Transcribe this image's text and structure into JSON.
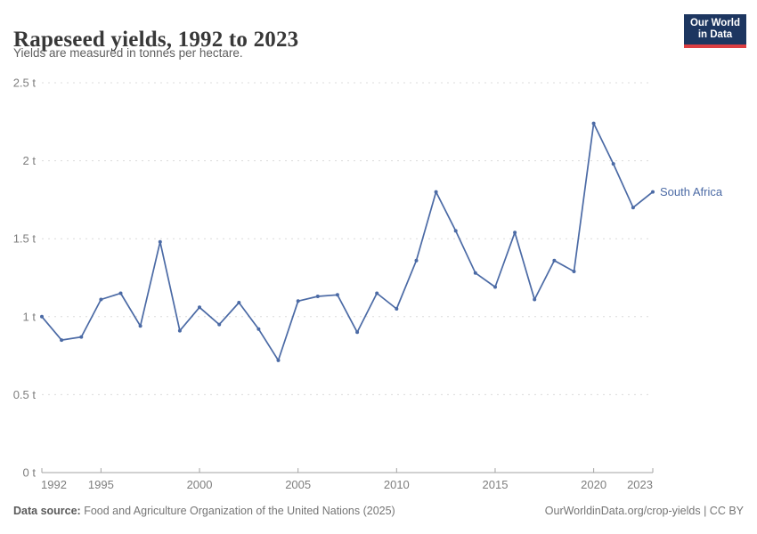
{
  "header": {
    "title": "Rapeseed yields, 1992 to 2023",
    "subtitle": "Yields are measured in tonnes per hectare.",
    "logo": {
      "line1": "Our World",
      "line2": "in Data"
    }
  },
  "colors": {
    "series": "#4b6aa5",
    "grid": "#dcdcdc",
    "axis": "#a3a3a3",
    "tick_text": "#7e7e7e",
    "logo_navy": "#1d3660",
    "logo_red": "#dc3e42"
  },
  "chart_data": {
    "type": "line",
    "title": "Rapeseed yields, 1992 to 2023",
    "ylabel": "tonnes per hectare",
    "xlabel": "",
    "grid": "horizontal-dashed",
    "legend_position": "end-of-line-label",
    "xlim": [
      1992,
      2023
    ],
    "ylim": [
      0,
      2.5
    ],
    "x": [
      1992,
      1993,
      1994,
      1995,
      1996,
      1997,
      1998,
      1999,
      2000,
      2001,
      2002,
      2003,
      2004,
      2005,
      2006,
      2007,
      2008,
      2009,
      2010,
      2011,
      2012,
      2013,
      2014,
      2015,
      2016,
      2017,
      2018,
      2019,
      2020,
      2021,
      2022,
      2023
    ],
    "series": [
      {
        "name": "South Africa",
        "values": [
          1.0,
          0.85,
          0.87,
          1.11,
          1.15,
          0.94,
          1.48,
          0.91,
          1.06,
          0.95,
          1.09,
          0.92,
          0.72,
          1.1,
          1.13,
          1.14,
          0.9,
          1.15,
          1.05,
          1.36,
          1.8,
          1.55,
          1.28,
          1.19,
          1.54,
          1.11,
          1.36,
          1.29,
          2.24,
          1.98,
          1.7,
          1.8
        ]
      }
    ],
    "y_ticks": [
      {
        "v": 0,
        "label": "0 t"
      },
      {
        "v": 0.5,
        "label": "0.5 t"
      },
      {
        "v": 1,
        "label": "1 t"
      },
      {
        "v": 1.5,
        "label": "1.5 t"
      },
      {
        "v": 2,
        "label": "2 t"
      },
      {
        "v": 2.5,
        "label": "2.5 t"
      }
    ],
    "x_ticks": [
      1992,
      1995,
      2000,
      2005,
      2010,
      2015,
      2020,
      2023
    ],
    "end_label": "South Africa"
  },
  "footer": {
    "source_prefix": "Data source:",
    "source_text": " Food and Agriculture Organization of the United Nations (2025)",
    "credit": "OurWorldinData.org/crop-yields | CC BY"
  }
}
